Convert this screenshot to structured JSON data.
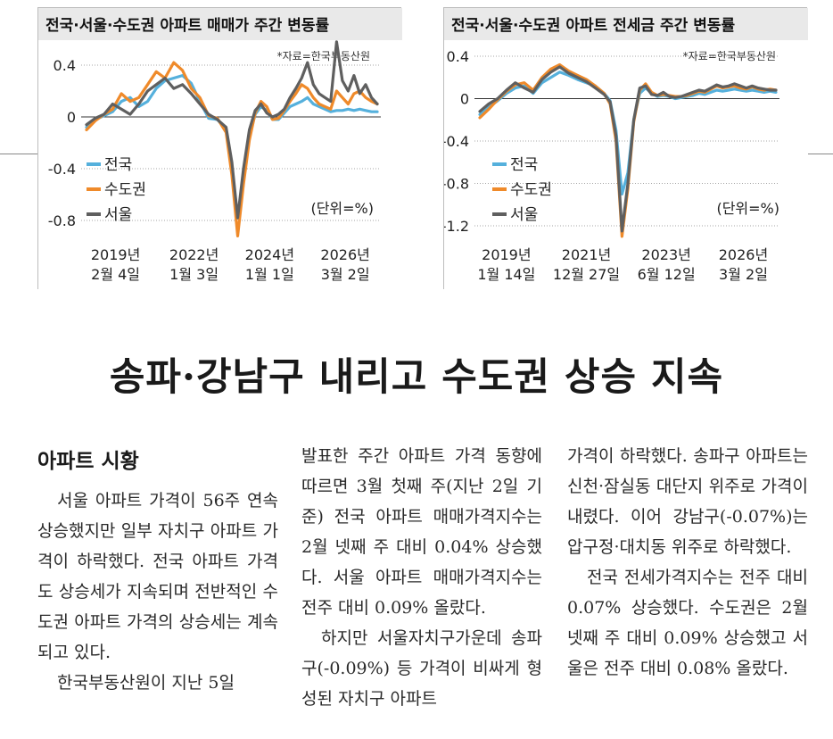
{
  "chart_data": [
    {
      "type": "line",
      "title": "전국·서울·수도권 아파트 매매가 주간 변동률",
      "source": "*자료=한국부동산원",
      "unit": "(단위=%)",
      "ylim": [
        -0.9,
        0.6
      ],
      "yticks": [
        0.4,
        0,
        -0.4,
        -0.8
      ],
      "ytick_labels": [
        "0.4",
        "0",
        "-0.4",
        "-0.8"
      ],
      "xlim": [
        0,
        100
      ],
      "xtick_positions": [
        10,
        37,
        63,
        89
      ],
      "xtick_labels": [
        [
          "2019년",
          "2월 4일"
        ],
        [
          "2022년",
          "1월 3일"
        ],
        [
          "2024년",
          "1월 1일"
        ],
        [
          "2026년",
          "3월 2일"
        ]
      ],
      "legend_placement": "bottom-left",
      "grid": false,
      "series": [
        {
          "name": "전국",
          "color": "#55b0dc",
          "x": [
            0,
            3,
            6,
            9,
            12,
            15,
            18,
            21,
            24,
            27,
            30,
            33,
            36,
            39,
            42,
            45,
            48,
            50,
            52,
            54,
            56,
            58,
            60,
            62,
            64,
            66,
            68,
            70,
            72,
            74,
            76,
            78,
            80,
            82,
            84,
            86,
            88,
            90,
            92,
            94,
            96,
            98,
            100
          ],
          "values": [
            -0.08,
            -0.02,
            0.01,
            0.04,
            0.12,
            0.15,
            0.08,
            0.12,
            0.22,
            0.28,
            0.3,
            0.32,
            0.26,
            0.12,
            -0.01,
            -0.02,
            -0.1,
            -0.4,
            -0.78,
            -0.45,
            -0.15,
            0.02,
            0.08,
            0.05,
            -0.02,
            -0.02,
            0.03,
            0.08,
            0.1,
            0.12,
            0.15,
            0.1,
            0.08,
            0.06,
            0.04,
            0.05,
            0.05,
            0.06,
            0.05,
            0.06,
            0.05,
            0.04,
            0.04
          ]
        },
        {
          "name": "수도권",
          "color": "#ef8a2a",
          "x": [
            0,
            3,
            6,
            9,
            12,
            15,
            18,
            21,
            24,
            27,
            30,
            33,
            36,
            39,
            42,
            45,
            48,
            50,
            52,
            54,
            56,
            58,
            60,
            62,
            64,
            66,
            68,
            70,
            72,
            74,
            76,
            78,
            80,
            82,
            84,
            86,
            88,
            90,
            92,
            94,
            96,
            98,
            100
          ],
          "values": [
            -0.1,
            -0.03,
            0.02,
            0.06,
            0.18,
            0.12,
            0.15,
            0.25,
            0.35,
            0.3,
            0.42,
            0.36,
            0.22,
            0.15,
            0.01,
            -0.01,
            -0.12,
            -0.45,
            -0.92,
            -0.52,
            -0.18,
            0.03,
            0.12,
            0.08,
            -0.02,
            -0.01,
            0.05,
            0.12,
            0.18,
            0.25,
            0.22,
            0.15,
            0.1,
            0.08,
            0.06,
            0.2,
            0.15,
            0.1,
            0.18,
            0.2,
            0.15,
            0.12,
            0.1
          ]
        },
        {
          "name": "서울",
          "color": "#5f5f5f",
          "x": [
            0,
            3,
            6,
            9,
            12,
            15,
            18,
            21,
            24,
            27,
            30,
            33,
            36,
            39,
            42,
            45,
            48,
            50,
            52,
            54,
            56,
            58,
            60,
            62,
            64,
            66,
            68,
            70,
            72,
            74,
            76,
            78,
            80,
            82,
            84,
            86,
            88,
            90,
            92,
            94,
            96,
            98,
            100
          ],
          "values": [
            -0.06,
            -0.01,
            0.02,
            0.1,
            0.06,
            0.02,
            0.1,
            0.2,
            0.25,
            0.3,
            0.22,
            0.25,
            0.18,
            0.1,
            0.02,
            -0.02,
            -0.08,
            -0.35,
            -0.78,
            -0.4,
            -0.1,
            0.05,
            0.1,
            0.03,
            0.0,
            0.02,
            0.06,
            0.15,
            0.22,
            0.3,
            0.42,
            0.25,
            0.18,
            0.15,
            0.12,
            0.58,
            0.28,
            0.2,
            0.32,
            0.18,
            0.25,
            0.15,
            0.1
          ]
        }
      ]
    },
    {
      "type": "line",
      "title": "전국·서울·수도권 아파트 전세금 주간 변동률",
      "source": "*자료=한국부동산원",
      "unit": "(단위=%)",
      "ylim": [
        -1.4,
        0.55
      ],
      "yticks": [
        0.4,
        0,
        -0.4,
        -0.8,
        -1.2
      ],
      "ytick_labels": [
        "0.4",
        "0",
        "-0.4",
        "-0.8",
        "-1.2"
      ],
      "xlim": [
        0,
        100
      ],
      "xtick_positions": [
        9,
        36,
        63,
        89
      ],
      "xtick_labels": [
        [
          "2019년",
          "1월 14일"
        ],
        [
          "2021년",
          "12월 27일"
        ],
        [
          "2023년",
          "6월 12일"
        ],
        [
          "2026년",
          "3월 2일"
        ]
      ],
      "legend_placement": "bottom-left",
      "grid": false,
      "series": [
        {
          "name": "전국",
          "color": "#55b0dc",
          "x": [
            0,
            3,
            6,
            9,
            12,
            15,
            18,
            21,
            24,
            27,
            30,
            33,
            36,
            39,
            42,
            44,
            46,
            48,
            50,
            52,
            54,
            56,
            58,
            60,
            62,
            64,
            66,
            68,
            70,
            72,
            74,
            76,
            78,
            80,
            82,
            84,
            86,
            88,
            90,
            92,
            94,
            96,
            98,
            100
          ],
          "values": [
            -0.15,
            -0.08,
            -0.02,
            0.05,
            0.1,
            0.12,
            0.05,
            0.15,
            0.2,
            0.25,
            0.22,
            0.18,
            0.15,
            0.12,
            0.05,
            -0.02,
            -0.3,
            -0.9,
            -0.7,
            -0.2,
            0.05,
            0.1,
            0.05,
            0.02,
            0.03,
            0.02,
            0.0,
            0.01,
            0.02,
            0.03,
            0.05,
            0.04,
            0.06,
            0.08,
            0.07,
            0.08,
            0.09,
            0.08,
            0.07,
            0.08,
            0.07,
            0.06,
            0.07,
            0.06
          ]
        },
        {
          "name": "수도권",
          "color": "#ef8a2a",
          "x": [
            0,
            3,
            6,
            9,
            12,
            15,
            18,
            21,
            24,
            27,
            30,
            33,
            36,
            39,
            42,
            44,
            46,
            48,
            50,
            52,
            54,
            56,
            58,
            60,
            62,
            64,
            66,
            68,
            70,
            72,
            74,
            76,
            78,
            80,
            82,
            84,
            86,
            88,
            90,
            92,
            94,
            96,
            98,
            100
          ],
          "values": [
            -0.18,
            -0.1,
            -0.01,
            0.07,
            0.13,
            0.15,
            0.08,
            0.2,
            0.28,
            0.32,
            0.26,
            0.22,
            0.18,
            0.12,
            0.05,
            -0.05,
            -0.4,
            -1.3,
            -0.85,
            -0.22,
            0.08,
            0.14,
            0.06,
            0.03,
            0.04,
            0.03,
            0.02,
            0.02,
            0.03,
            0.05,
            0.07,
            0.06,
            0.09,
            0.12,
            0.1,
            0.11,
            0.12,
            0.1,
            0.09,
            0.11,
            0.09,
            0.08,
            0.09,
            0.08
          ]
        },
        {
          "name": "서울",
          "color": "#5f5f5f",
          "x": [
            0,
            3,
            6,
            9,
            12,
            15,
            18,
            21,
            24,
            27,
            30,
            33,
            36,
            39,
            42,
            44,
            46,
            48,
            50,
            52,
            54,
            56,
            58,
            60,
            62,
            64,
            66,
            68,
            70,
            72,
            74,
            76,
            78,
            80,
            82,
            84,
            86,
            88,
            90,
            92,
            94,
            96,
            98,
            100
          ],
          "values": [
            -0.12,
            -0.05,
            0.0,
            0.08,
            0.15,
            0.1,
            0.06,
            0.18,
            0.25,
            0.3,
            0.24,
            0.2,
            0.16,
            0.1,
            0.04,
            -0.03,
            -0.35,
            -1.25,
            -0.8,
            -0.2,
            0.1,
            0.12,
            0.04,
            0.03,
            0.06,
            0.02,
            0.01,
            0.02,
            0.04,
            0.06,
            0.08,
            0.07,
            0.1,
            0.13,
            0.11,
            0.12,
            0.14,
            0.12,
            0.1,
            0.12,
            0.1,
            0.09,
            0.08,
            0.08
          ]
        }
      ]
    }
  ],
  "article": {
    "headline": "송파·강남구 내리고 수도권 상승 지속",
    "section_head": "아파트 시황",
    "col1_para1": "서울 아파트 가격이 56주 연속 상승했지만 일부 자치구 아파트 가격이 하락했다. 전국 아파트 가격도 상승세가 지속되며 전반적인 수도권 아파트 가격의 상승세는 계속되고 있다.",
    "col1_para2": "한국부동산원이 지난 5일",
    "col2_para1": "발표한 주간 아파트 가격 동향에 따르면 3월 첫째 주(지난 2일 기준) 전국 아파트 매매가격지수는 2월 넷째 주 대비 0.04% 상승했다. 서울 아파트 매매가격지수는 전주 대비 0.09% 올랐다.",
    "col2_para2": "하지만 서울자치구가운데 송파구(-0.09%) 등 가격이 비싸게 형성된 자치구 아파트",
    "col3_para1": "가격이 하락했다. 송파구 아파트는 신천·잠실동 대단지 위주로 가격이 내렸다. 이어 강남구(-0.07%)는 압구정·대치동 위주로 하락했다.",
    "col3_para2": "전국 전세가격지수는 전주 대비 0.07% 상승했다. 수도권은 2월 넷째 주 대비 0.09% 상승했고 서울은 전주 대비 0.08% 올랐다."
  }
}
